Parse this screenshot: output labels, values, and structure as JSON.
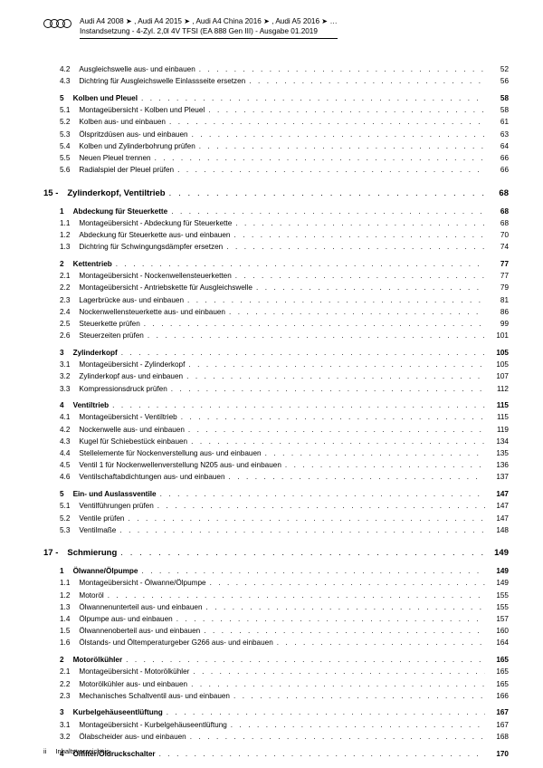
{
  "header": {
    "line1": "Audi A4 2008 ➤ , Audi A4 2015 ➤ , Audi A4 China 2016 ➤ , Audi A5 2016 ➤ …",
    "line2": "Instandsetzung - 4-Zyl. 2,0l 4V TFSI (EA 888 Gen III) - Ausgabe 01.2019"
  },
  "footer": {
    "page_num": "ii",
    "label": "Inhaltsverzeichnis"
  },
  "toc": [
    {
      "lvl": "item",
      "num": "4.2",
      "title": "Ausgleichswelle aus- und einbauen",
      "pg": "52"
    },
    {
      "lvl": "item",
      "num": "4.3",
      "title": "Dichtring für Ausgleichswelle Einlassseite ersetzen",
      "pg": "56"
    },
    {
      "lvl": "section",
      "num": "5",
      "title": "Kolben und Pleuel",
      "pg": "58"
    },
    {
      "lvl": "item",
      "num": "5.1",
      "title": "Montageübersicht - Kolben und Pleuel",
      "pg": "58"
    },
    {
      "lvl": "item",
      "num": "5.2",
      "title": "Kolben aus- und einbauen",
      "pg": "61"
    },
    {
      "lvl": "item",
      "num": "5.3",
      "title": "Ölspritzdüsen aus- und einbauen",
      "pg": "63"
    },
    {
      "lvl": "item",
      "num": "5.4",
      "title": "Kolben und Zylinderbohrung prüfen",
      "pg": "64"
    },
    {
      "lvl": "item",
      "num": "5.5",
      "title": "Neuen Pleuel trennen",
      "pg": "66"
    },
    {
      "lvl": "item",
      "num": "5.6",
      "title": "Radialspiel der Pleuel prüfen",
      "pg": "66"
    },
    {
      "lvl": "chapter",
      "num": "15 -",
      "title": "Zylinderkopf, Ventiltrieb",
      "pg": "68"
    },
    {
      "lvl": "section",
      "num": "1",
      "title": "Abdeckung für Steuerkette",
      "pg": "68"
    },
    {
      "lvl": "item",
      "num": "1.1",
      "title": "Montageübersicht - Abdeckung für Steuerkette",
      "pg": "68"
    },
    {
      "lvl": "item",
      "num": "1.2",
      "title": "Abdeckung für Steuerkette aus- und einbauen",
      "pg": "70"
    },
    {
      "lvl": "item",
      "num": "1.3",
      "title": "Dichtring für Schwingungsdämpfer ersetzen",
      "pg": "74"
    },
    {
      "lvl": "section",
      "num": "2",
      "title": "Kettentrieb",
      "pg": "77"
    },
    {
      "lvl": "item",
      "num": "2.1",
      "title": "Montageübersicht - Nockenwellensteuerketten",
      "pg": "77"
    },
    {
      "lvl": "item",
      "num": "2.2",
      "title": "Montageübersicht - Antriebskette für Ausgleichswelle",
      "pg": "79"
    },
    {
      "lvl": "item",
      "num": "2.3",
      "title": "Lagerbrücke aus- und einbauen",
      "pg": "81"
    },
    {
      "lvl": "item",
      "num": "2.4",
      "title": "Nockenwellensteuerkette aus- und einbauen",
      "pg": "86"
    },
    {
      "lvl": "item",
      "num": "2.5",
      "title": "Steuerkette prüfen",
      "pg": "99"
    },
    {
      "lvl": "item",
      "num": "2.6",
      "title": "Steuerzeiten prüfen",
      "pg": "101"
    },
    {
      "lvl": "section",
      "num": "3",
      "title": "Zylinderkopf",
      "pg": "105"
    },
    {
      "lvl": "item",
      "num": "3.1",
      "title": "Montageübersicht - Zylinderkopf",
      "pg": "105"
    },
    {
      "lvl": "item",
      "num": "3.2",
      "title": "Zylinderkopf aus- und einbauen",
      "pg": "107"
    },
    {
      "lvl": "item",
      "num": "3.3",
      "title": "Kompressionsdruck prüfen",
      "pg": "112"
    },
    {
      "lvl": "section",
      "num": "4",
      "title": "Ventiltrieb",
      "pg": "115"
    },
    {
      "lvl": "item",
      "num": "4.1",
      "title": "Montageübersicht - Ventiltrieb",
      "pg": "115"
    },
    {
      "lvl": "item",
      "num": "4.2",
      "title": "Nockenwelle aus- und einbauen",
      "pg": "119"
    },
    {
      "lvl": "item",
      "num": "4.3",
      "title": "Kugel für Schiebestück einbauen",
      "pg": "134"
    },
    {
      "lvl": "item",
      "num": "4.4",
      "title": "Stellelemente für Nockenverstellung aus- und einbauen",
      "pg": "135"
    },
    {
      "lvl": "item",
      "num": "4.5",
      "title": "Ventil 1 für Nockenwellenverstellung N205 aus- und einbauen",
      "pg": "136"
    },
    {
      "lvl": "item",
      "num": "4.6",
      "title": "Ventilschaftabdichtungen aus- und einbauen",
      "pg": "137"
    },
    {
      "lvl": "section",
      "num": "5",
      "title": "Ein- und Auslassventile",
      "pg": "147"
    },
    {
      "lvl": "item",
      "num": "5.1",
      "title": "Ventilführungen prüfen",
      "pg": "147"
    },
    {
      "lvl": "item",
      "num": "5.2",
      "title": "Ventile prüfen",
      "pg": "147"
    },
    {
      "lvl": "item",
      "num": "5.3",
      "title": "Ventilmaße",
      "pg": "148"
    },
    {
      "lvl": "chapter",
      "num": "17 -",
      "title": "Schmierung",
      "pg": "149"
    },
    {
      "lvl": "section",
      "num": "1",
      "title": "Ölwanne/Ölpumpe",
      "pg": "149"
    },
    {
      "lvl": "item",
      "num": "1.1",
      "title": "Montageübersicht - Ölwanne/Ölpumpe",
      "pg": "149"
    },
    {
      "lvl": "item",
      "num": "1.2",
      "title": "Motoröl",
      "pg": "155"
    },
    {
      "lvl": "item",
      "num": "1.3",
      "title": "Ölwannenunterteil aus- und einbauen",
      "pg": "155"
    },
    {
      "lvl": "item",
      "num": "1.4",
      "title": "Ölpumpe aus- und einbauen",
      "pg": "157"
    },
    {
      "lvl": "item",
      "num": "1.5",
      "title": "Ölwannenoberteil aus- und einbauen",
      "pg": "160"
    },
    {
      "lvl": "item",
      "num": "1.6",
      "title": "Ölstands- und Öltemperaturgeber G266 aus- und einbauen",
      "pg": "164"
    },
    {
      "lvl": "section",
      "num": "2",
      "title": "Motorölkühler",
      "pg": "165"
    },
    {
      "lvl": "item",
      "num": "2.1",
      "title": "Montageübersicht - Motorölkühler",
      "pg": "165"
    },
    {
      "lvl": "item",
      "num": "2.2",
      "title": "Motorölkühler aus- und einbauen",
      "pg": "165"
    },
    {
      "lvl": "item",
      "num": "2.3",
      "title": "Mechanisches Schaltventil aus- und einbauen",
      "pg": "166"
    },
    {
      "lvl": "section",
      "num": "3",
      "title": "Kurbelgehäuseentlüftung",
      "pg": "167"
    },
    {
      "lvl": "item",
      "num": "3.1",
      "title": "Montageübersicht - Kurbelgehäuseentlüftung",
      "pg": "167"
    },
    {
      "lvl": "item",
      "num": "3.2",
      "title": "Ölabscheider aus- und einbauen",
      "pg": "168"
    },
    {
      "lvl": "section",
      "num": "4",
      "title": "Ölfilter/Öldruckschalter",
      "pg": "170"
    }
  ]
}
